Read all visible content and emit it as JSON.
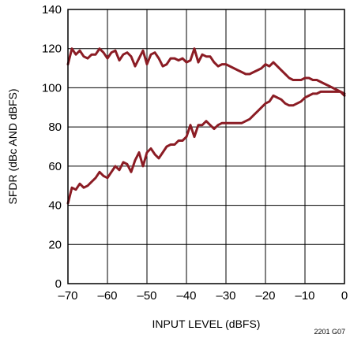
{
  "chart_data": {
    "type": "line",
    "xlabel": "INPUT LEVEL (dBFS)",
    "ylabel": "SFDR (dBc AND dBFS)",
    "figure_code": "2201 G07",
    "xlim": [
      -70,
      0
    ],
    "ylim": [
      0,
      140
    ],
    "xticks": [
      -70,
      -60,
      -50,
      -40,
      -30,
      -20,
      -10,
      0
    ],
    "xtick_labels": [
      "–70",
      "–60",
      "–50",
      "–40",
      "–30",
      "–20",
      "–10",
      "0"
    ],
    "yticks": [
      0,
      20,
      40,
      60,
      80,
      100,
      120,
      140
    ],
    "ytick_labels": [
      "0",
      "20",
      "40",
      "60",
      "80",
      "100",
      "120",
      "140"
    ],
    "grid": true,
    "line_color": "#8b1c24",
    "series": [
      {
        "x": [
          -70,
          -69,
          -68,
          -67,
          -66,
          -65,
          -64,
          -63,
          -62,
          -61,
          -60,
          -59,
          -58,
          -57,
          -56,
          -55,
          -54,
          -53,
          -52,
          -51,
          -50,
          -49,
          -48,
          -47,
          -46,
          -45,
          -44,
          -43,
          -42,
          -41,
          -40,
          -39,
          -38,
          -37,
          -36,
          -35,
          -34,
          -33,
          -32,
          -31,
          -30,
          -29,
          -28,
          -27,
          -26,
          -25,
          -24,
          -23,
          -22,
          -21,
          -20,
          -19,
          -18,
          -17,
          -16,
          -15,
          -14,
          -13,
          -12,
          -11,
          -10,
          -9,
          -8,
          -7,
          -6,
          -5,
          -4,
          -3,
          -2,
          -1,
          0
        ],
        "y": [
          112,
          120,
          117,
          119,
          116,
          115,
          117,
          117,
          120,
          118,
          115,
          118,
          119,
          114,
          117,
          118,
          116,
          111,
          115,
          119,
          112,
          117,
          118,
          115,
          111,
          112,
          115,
          115,
          114,
          115,
          113,
          114,
          120,
          113,
          117,
          116,
          116,
          113,
          111,
          112,
          112,
          111,
          110,
          109,
          108,
          107,
          107,
          108,
          109,
          110,
          112,
          111,
          113,
          111,
          109,
          107,
          105,
          104,
          104,
          104,
          105,
          105,
          104,
          104,
          103,
          102,
          101,
          100,
          99,
          98,
          97
        ]
      },
      {
        "x": [
          -70,
          -69,
          -68,
          -67,
          -66,
          -65,
          -64,
          -63,
          -62,
          -61,
          -60,
          -59,
          -58,
          -57,
          -56,
          -55,
          -54,
          -53,
          -52,
          -51,
          -50,
          -49,
          -48,
          -47,
          -46,
          -45,
          -44,
          -43,
          -42,
          -41,
          -40,
          -39,
          -38,
          -37,
          -36,
          -35,
          -34,
          -33,
          -32,
          -31,
          -30,
          -29,
          -28,
          -27,
          -26,
          -25,
          -24,
          -23,
          -22,
          -21,
          -20,
          -19,
          -18,
          -17,
          -16,
          -15,
          -14,
          -13,
          -12,
          -11,
          -10,
          -9,
          -8,
          -7,
          -6,
          -5,
          -4,
          -3,
          -2,
          -1,
          0
        ],
        "y": [
          41,
          49,
          48,
          51,
          49,
          50,
          52,
          54,
          57,
          55,
          54,
          57,
          60,
          58,
          62,
          61,
          57,
          63,
          67,
          60,
          67,
          69,
          66,
          64,
          67,
          70,
          71,
          71,
          73,
          73,
          75,
          81,
          75,
          81,
          81,
          83,
          81,
          79,
          81,
          82,
          82,
          82,
          82,
          82,
          82,
          83,
          84,
          86,
          88,
          90,
          92,
          93,
          96,
          95,
          94,
          92,
          91,
          91,
          92,
          93,
          95,
          96,
          97,
          97,
          98,
          98,
          98,
          98,
          98,
          98,
          96
        ]
      }
    ]
  }
}
